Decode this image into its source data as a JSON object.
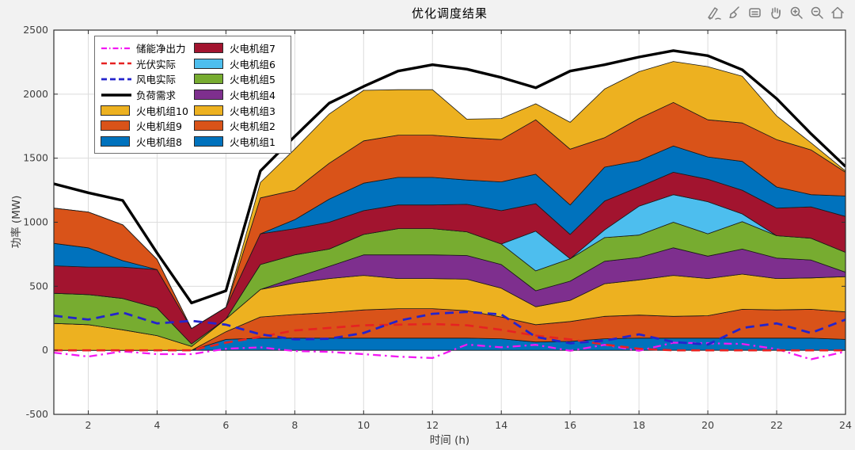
{
  "figure": {
    "background": "#f2f2f2",
    "plot_background": "#ffffff",
    "grid_color": "#dcdcdc",
    "axis_color": "#2f2f2f",
    "tick_label_color": "#3f3f3f"
  },
  "toolbar": {
    "icons": [
      "export",
      "brush",
      "data-tips",
      "pan",
      "zoom-in",
      "zoom-out",
      "restore-view"
    ]
  },
  "chart_data": {
    "type": "area",
    "title": "优化调度结果",
    "xlabel": "时间 (h)",
    "ylabel": "功率 (MW)",
    "xlim": [
      1,
      24
    ],
    "ylim": [
      -500,
      2500
    ],
    "xticks": [
      2,
      4,
      6,
      8,
      10,
      12,
      14,
      16,
      18,
      20,
      22,
      24
    ],
    "yticks": [
      -500,
      0,
      500,
      1000,
      1500,
      2000,
      2500
    ],
    "grid": true,
    "legend_position": "top-left",
    "hours": [
      1,
      2,
      3,
      4,
      5,
      6,
      7,
      8,
      9,
      10,
      11,
      12,
      13,
      14,
      15,
      16,
      17,
      18,
      19,
      20,
      21,
      22,
      23,
      24
    ],
    "stack_series": [
      {
        "name": "火电机组1",
        "color": "#0072BD",
        "values": [
          0,
          0,
          0,
          0,
          0,
          85,
          95,
          95,
          95,
          95,
          95,
          95,
          95,
          90,
          65,
          70,
          90,
          95,
          95,
          95,
          95,
          95,
          95,
          85
        ]
      },
      {
        "name": "火电机组2",
        "color": "#D95319",
        "values": [
          0,
          0,
          0,
          0,
          0,
          60,
          165,
          185,
          200,
          220,
          230,
          230,
          215,
          170,
          135,
          155,
          175,
          180,
          170,
          175,
          225,
          220,
          225,
          215
        ]
      },
      {
        "name": "火电机组3",
        "color": "#EDB120",
        "values": [
          210,
          200,
          160,
          115,
          30,
          100,
          215,
          245,
          265,
          270,
          235,
          235,
          245,
          225,
          140,
          165,
          255,
          275,
          320,
          290,
          275,
          245,
          245,
          275
        ]
      },
      {
        "name": "火电机组4",
        "color": "#7E2F8E",
        "values": [
          0,
          0,
          0,
          0,
          0,
          0,
          0,
          40,
          95,
          160,
          185,
          185,
          185,
          185,
          125,
          150,
          175,
          175,
          215,
          175,
          195,
          160,
          140,
          35
        ]
      },
      {
        "name": "火电机组5",
        "color": "#77AC30",
        "values": [
          235,
          235,
          245,
          215,
          20,
          0,
          195,
          180,
          135,
          160,
          205,
          205,
          185,
          160,
          155,
          175,
          185,
          175,
          200,
          175,
          215,
          175,
          170,
          155
        ]
      },
      {
        "name": "火电机组6",
        "color": "#4DBEEE",
        "values": [
          0,
          0,
          0,
          0,
          0,
          0,
          0,
          0,
          0,
          0,
          0,
          0,
          0,
          0,
          310,
          0,
          60,
          225,
          215,
          250,
          60,
          0,
          0,
          0
        ]
      },
      {
        "name": "火电机组7",
        "color": "#A2142F",
        "values": [
          215,
          215,
          245,
          300,
          120,
          90,
          240,
          205,
          210,
          185,
          185,
          185,
          215,
          260,
          215,
          190,
          225,
          150,
          175,
          175,
          185,
          215,
          245,
          280
        ]
      },
      {
        "name": "火电机组8",
        "color": "#0072BD",
        "values": [
          175,
          150,
          50,
          0,
          0,
          0,
          0,
          70,
          180,
          215,
          215,
          215,
          190,
          225,
          230,
          230,
          265,
          205,
          205,
          175,
          225,
          165,
          95,
          160
        ]
      },
      {
        "name": "火电机组9",
        "color": "#D95319",
        "values": [
          275,
          280,
          280,
          80,
          0,
          0,
          280,
          230,
          280,
          330,
          330,
          330,
          330,
          330,
          425,
          435,
          230,
          330,
          340,
          290,
          300,
          370,
          350,
          185
        ]
      },
      {
        "name": "火电机组10",
        "color": "#EDB120",
        "values": [
          0,
          0,
          0,
          0,
          0,
          0,
          120,
          320,
          385,
          395,
          355,
          355,
          145,
          165,
          125,
          210,
          380,
          365,
          320,
          415,
          365,
          185,
          55,
          10
        ]
      }
    ],
    "line_series": [
      {
        "name": "储能净出力",
        "color": "#F318F3",
        "style": "dashdot",
        "width": 2.3,
        "values": [
          -18,
          -49,
          -8,
          -30,
          -30,
          12,
          23,
          -6,
          -12,
          -30,
          -49,
          -60,
          45,
          23,
          43,
          -4,
          43,
          -4,
          60,
          55,
          50,
          10,
          -70,
          -10
        ]
      },
      {
        "name": "光伏实际",
        "color": "#E62222",
        "style": "dashed",
        "width": 2.6,
        "values": [
          0,
          0,
          0,
          0,
          0,
          60,
          105,
          155,
          175,
          195,
          200,
          205,
          195,
          160,
          115,
          85,
          45,
          12,
          0,
          0,
          0,
          0,
          0,
          0
        ]
      },
      {
        "name": "风电实际",
        "color": "#2424CC",
        "style": "dashed",
        "width": 2.8,
        "values": [
          270,
          240,
          295,
          210,
          230,
          200,
          125,
          85,
          90,
          135,
          230,
          285,
          300,
          280,
          105,
          55,
          75,
          125,
          65,
          45,
          175,
          210,
          135,
          240
        ]
      },
      {
        "name": "负荷需求",
        "color": "#000000",
        "style": "solid",
        "width": 3.4,
        "values": [
          1300,
          1230,
          1170,
          760,
          370,
          465,
          1400,
          1670,
          1930,
          2060,
          2180,
          2230,
          2195,
          2130,
          2050,
          2180,
          2230,
          2290,
          2340,
          2300,
          2190,
          1965,
          1690,
          1435
        ]
      }
    ],
    "legend_columns": [
      [
        "储能净出力",
        "光伏实际",
        "风电实际",
        "负荷需求",
        "火电机组10",
        "火电机组9",
        "火电机组8"
      ],
      [
        "火电机组7",
        "火电机组6",
        "火电机组5",
        "火电机组4",
        "火电机组3",
        "火电机组2",
        "火电机组1"
      ]
    ]
  }
}
